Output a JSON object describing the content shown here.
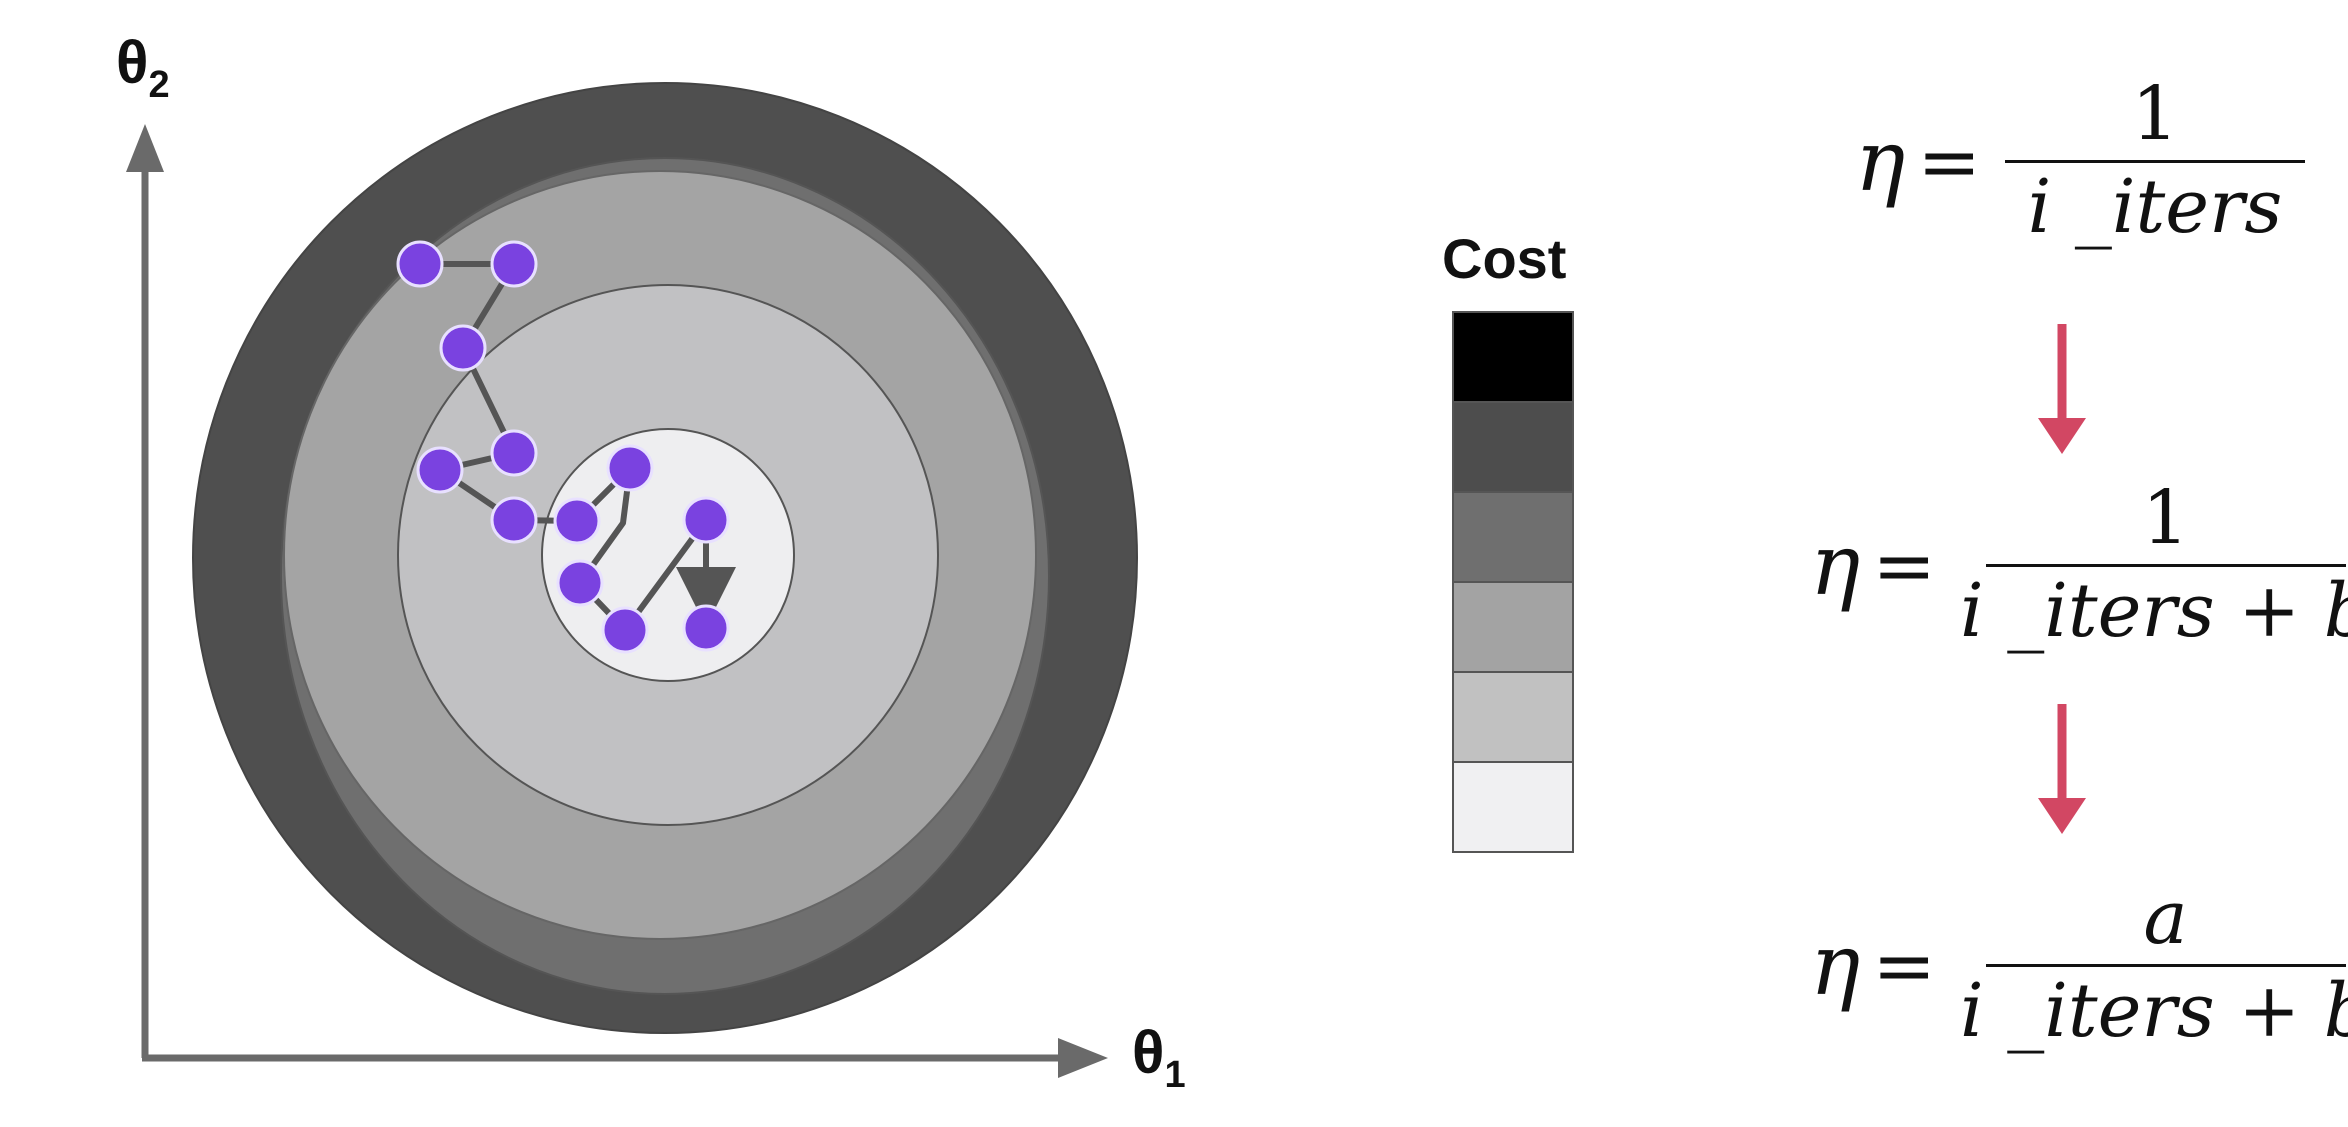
{
  "axes": {
    "y_label": "θ",
    "y_sub": "2",
    "x_label": "θ",
    "x_sub": "1"
  },
  "contour": {
    "level_colors": [
      "#4f4f4f",
      "#6f6f6f",
      "#a4a4a4",
      "#c1c1c3",
      "#eeeef0"
    ],
    "point_color": "#7a42e0",
    "path_color": "#555555",
    "path_points": 12
  },
  "legend": {
    "title": "Cost",
    "swatches": [
      "#000000",
      "#4d4d4d",
      "#6f6f6f",
      "#a3a3a3",
      "#c1c1c1",
      "#f0f0f2"
    ]
  },
  "formulas": [
    {
      "lhs": "η",
      "eq": "=",
      "numerator": "1",
      "denominator": "i _iters"
    },
    {
      "lhs": "η",
      "eq": "=",
      "numerator": "1",
      "denominator": "i _iters + b"
    },
    {
      "lhs": "η",
      "eq": "=",
      "numerator": "a",
      "denominator": "i _iters + b"
    }
  ],
  "arrow_color": "#d24763"
}
